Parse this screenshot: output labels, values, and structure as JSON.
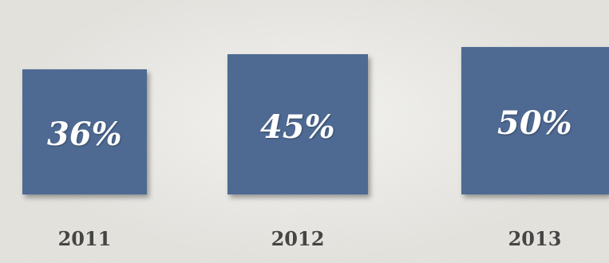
{
  "chart_data": {
    "type": "bar",
    "categories": [
      "2011",
      "2012",
      "2013"
    ],
    "values": [
      36,
      45,
      50
    ],
    "value_labels": [
      "36%",
      "45%",
      "50%"
    ],
    "color": "#4e6a93",
    "title": "",
    "xlabel": "",
    "ylabel": ""
  }
}
